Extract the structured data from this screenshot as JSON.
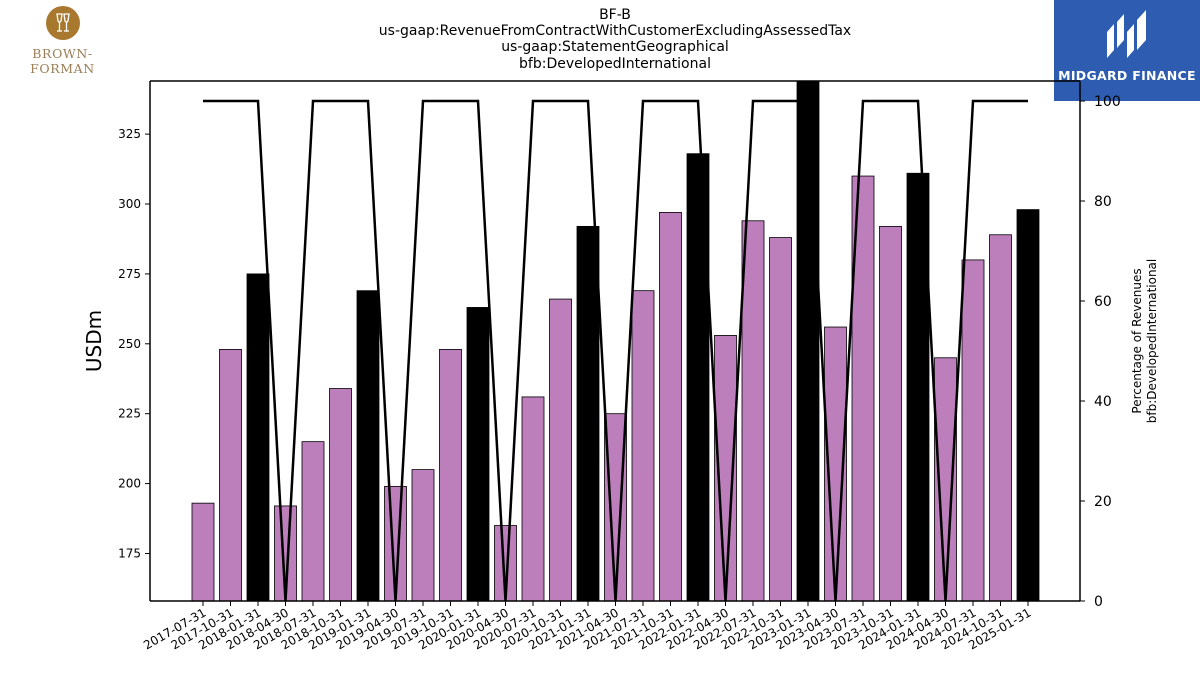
{
  "title_lines": [
    "BF-B",
    "us-gaap:RevenueFromContractWithCustomerExcludingAssessedTax",
    "us-gaap:StatementGeographical",
    "bfb:DevelopedInternational"
  ],
  "logos": {
    "left_text": "BROWN-FORMAN",
    "right_text": "MIDGARD FINANCE"
  },
  "chart_data": {
    "type": "bar",
    "ylabel": "USDm",
    "ylabel_right": [
      "Percentage of Revenues",
      "bfb:DevelopedInternational"
    ],
    "ylim": [
      158,
      344
    ],
    "ylim_right": [
      0,
      104
    ],
    "yticks": [
      175,
      200,
      225,
      250,
      275,
      300,
      325
    ],
    "yticks_right": [
      0,
      20,
      40,
      60,
      80,
      100
    ],
    "grid": false,
    "categories": [
      "2017-07-31",
      "2017-10-31",
      "2018-01-31",
      "2018-04-30",
      "2018-07-31",
      "2018-10-31",
      "2019-01-31",
      "2019-04-30",
      "2019-07-31",
      "2019-10-31",
      "2020-01-31",
      "2020-04-30",
      "2020-07-31",
      "2020-10-31",
      "2021-01-31",
      "2021-04-30",
      "2021-07-31",
      "2021-10-31",
      "2022-01-31",
      "2022-04-30",
      "2022-07-31",
      "2022-10-31",
      "2023-01-31",
      "2023-04-30",
      "2023-07-31",
      "2023-10-31",
      "2024-01-31",
      "2024-04-30",
      "2024-07-31",
      "2024-10-31",
      "2025-01-31"
    ],
    "series": [
      {
        "type": "bar",
        "values": [
          193,
          248,
          275,
          192,
          215,
          234,
          269,
          199,
          205,
          248,
          263,
          185,
          231,
          266,
          292,
          225,
          269,
          297,
          318,
          253,
          294,
          288,
          346,
          256,
          310,
          292,
          311,
          245,
          280,
          289,
          298
        ],
        "colors": [
          "#bc7fbc",
          "#bc7fbc",
          "#000000",
          "#bc7fbc",
          "#bc7fbc",
          "#bc7fbc",
          "#000000",
          "#bc7fbc",
          "#bc7fbc",
          "#bc7fbc",
          "#000000",
          "#bc7fbc",
          "#bc7fbc",
          "#bc7fbc",
          "#000000",
          "#bc7fbc",
          "#bc7fbc",
          "#bc7fbc",
          "#000000",
          "#bc7fbc",
          "#bc7fbc",
          "#bc7fbc",
          "#000000",
          "#bc7fbc",
          "#bc7fbc",
          "#bc7fbc",
          "#000000",
          "#bc7fbc",
          "#bc7fbc",
          "#bc7fbc",
          "#000000"
        ]
      },
      {
        "type": "line",
        "axis": "right",
        "color": "#000000",
        "values": [
          100,
          100,
          100,
          0,
          100,
          100,
          100,
          0,
          100,
          100,
          100,
          0,
          100,
          100,
          100,
          0,
          100,
          100,
          100,
          0,
          100,
          100,
          100,
          0,
          100,
          100,
          100,
          0,
          100,
          100,
          100
        ]
      }
    ]
  }
}
